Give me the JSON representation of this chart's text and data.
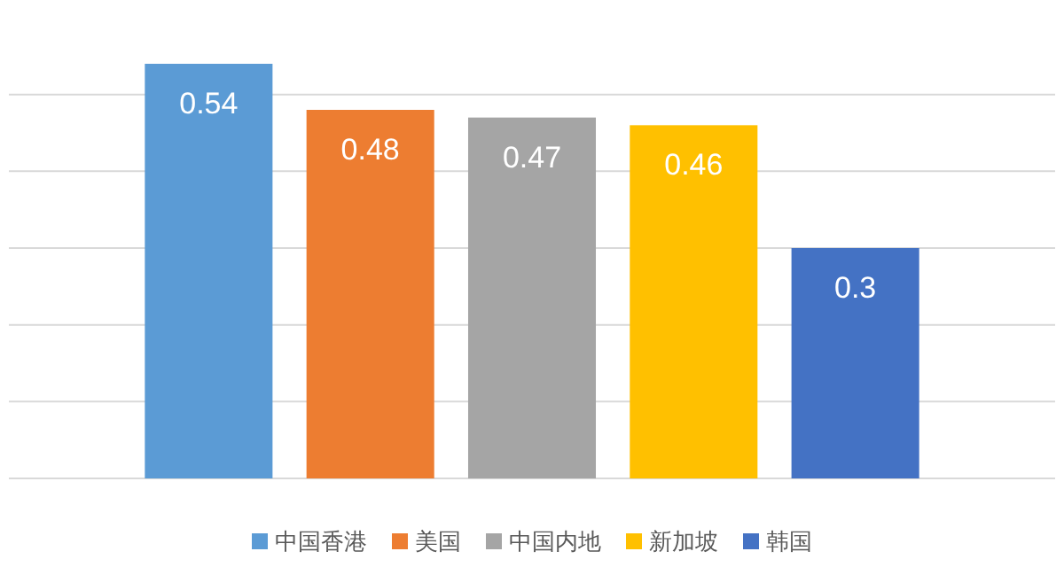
{
  "chart_data": {
    "type": "bar",
    "categories": [
      null
    ],
    "series": [
      {
        "name": "中国香港",
        "color": "#5b9bd5",
        "values": [
          0.54
        ]
      },
      {
        "name": "美国",
        "color": "#ed7d31",
        "values": [
          0.48
        ]
      },
      {
        "name": "中国内地",
        "color": "#a5a5a5",
        "values": [
          0.47
        ]
      },
      {
        "name": "新加坡",
        "color": "#ffc000",
        "values": [
          0.46
        ]
      },
      {
        "name": "韩国",
        "color": "#4472c4",
        "values": [
          0.3
        ]
      }
    ],
    "grid": "y",
    "data_labels": true,
    "legend": "bottom"
  }
}
